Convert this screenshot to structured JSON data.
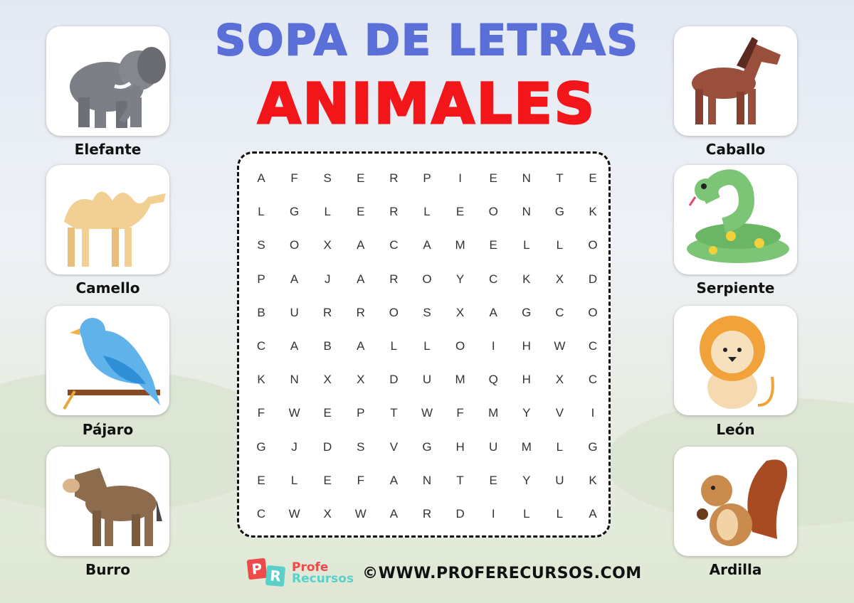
{
  "title": {
    "line1": "SOPA DE LETRAS",
    "line2": "ANIMALES"
  },
  "colors": {
    "title1": "#5b6fd8",
    "title2": "#f2161b"
  },
  "grid": [
    [
      "A",
      "F",
      "S",
      "E",
      "R",
      "P",
      "I",
      "E",
      "N",
      "T",
      "E"
    ],
    [
      "L",
      "G",
      "L",
      "E",
      "R",
      "L",
      "E",
      "O",
      "N",
      "G",
      "K"
    ],
    [
      "S",
      "O",
      "X",
      "A",
      "C",
      "A",
      "M",
      "E",
      "L",
      "L",
      "O"
    ],
    [
      "P",
      "A",
      "J",
      "A",
      "R",
      "O",
      "Y",
      "C",
      "K",
      "X",
      "D"
    ],
    [
      "B",
      "U",
      "R",
      "R",
      "O",
      "S",
      "X",
      "A",
      "G",
      "C",
      "O"
    ],
    [
      "C",
      "A",
      "B",
      "A",
      "L",
      "L",
      "O",
      "I",
      "H",
      "W",
      "C"
    ],
    [
      "K",
      "N",
      "X",
      "X",
      "D",
      "U",
      "M",
      "Q",
      "H",
      "X",
      "C"
    ],
    [
      "F",
      "W",
      "E",
      "P",
      "T",
      "W",
      "F",
      "M",
      "Y",
      "V",
      "I"
    ],
    [
      "G",
      "J",
      "D",
      "S",
      "V",
      "G",
      "H",
      "U",
      "M",
      "L",
      "G"
    ],
    [
      "E",
      "L",
      "E",
      "F",
      "A",
      "N",
      "T",
      "E",
      "Y",
      "U",
      "K"
    ],
    [
      "C",
      "W",
      "X",
      "W",
      "A",
      "R",
      "D",
      "I",
      "L",
      "L",
      "A"
    ]
  ],
  "left_animals": [
    {
      "label": "Elefante",
      "icon": "elephant-icon"
    },
    {
      "label": "Camello",
      "icon": "camel-icon"
    },
    {
      "label": "Pájaro",
      "icon": "bird-icon"
    },
    {
      "label": "Burro",
      "icon": "donkey-icon"
    }
  ],
  "right_animals": [
    {
      "label": "Caballo",
      "icon": "horse-icon"
    },
    {
      "label": "Serpiente",
      "icon": "snake-icon"
    },
    {
      "label": "León",
      "icon": "lion-icon"
    },
    {
      "label": "Ardilla",
      "icon": "squirrel-icon"
    }
  ],
  "footer": {
    "logo_letters": "PR",
    "brand_line1": "Profe",
    "brand_line2": "Recursos",
    "copyright": "©",
    "url": "WWW.PROFERECURSOS.COM"
  }
}
